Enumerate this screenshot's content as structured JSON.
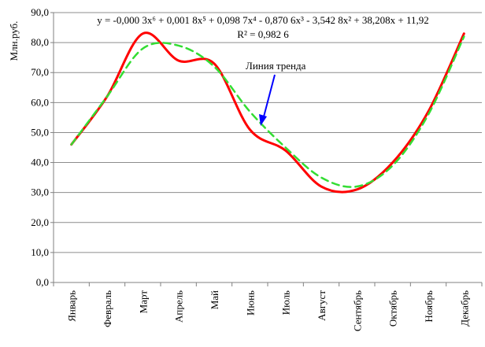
{
  "chart_data": {
    "type": "line",
    "title": "",
    "ylabel": "Млн.руб.",
    "xlabel": "",
    "ylim": [
      0,
      90
    ],
    "yticks": [
      0,
      10,
      20,
      30,
      40,
      50,
      60,
      70,
      80,
      90
    ],
    "ytick_labels": [
      "0,0",
      "10,0",
      "20,0",
      "30,0",
      "40,0",
      "50,0",
      "60,0",
      "70,0",
      "80,0",
      "90,0"
    ],
    "categories": [
      "Январь",
      "Февраль",
      "Март",
      "Апрель",
      "Май",
      "Июнь",
      "Июль",
      "Август",
      "Сентябрь",
      "Октябрь",
      "Ноябрь",
      "Декабрь"
    ],
    "grid": "horizontal",
    "series": [
      {
        "name": "",
        "style": "solid",
        "color": "#ff0000",
        "values": [
          46,
          62,
          83,
          74,
          73,
          51,
          44,
          32,
          31,
          40,
          57,
          83
        ]
      },
      {
        "name": "Линия тренда",
        "style": "dashed",
        "color": "#33dd33",
        "values": [
          46,
          62,
          78,
          79,
          72,
          57,
          45,
          35,
          32,
          39,
          56,
          82
        ]
      }
    ],
    "equation": {
      "line": "y = -0,000 3x⁶ + 0,001 8x⁵ + 0,098 7x⁴ - 0,870 6x³ - 3,542 8x² + 38,208x + 11,92",
      "r2": "R² = 0,982 6"
    },
    "annotation": "Линия тренда"
  }
}
